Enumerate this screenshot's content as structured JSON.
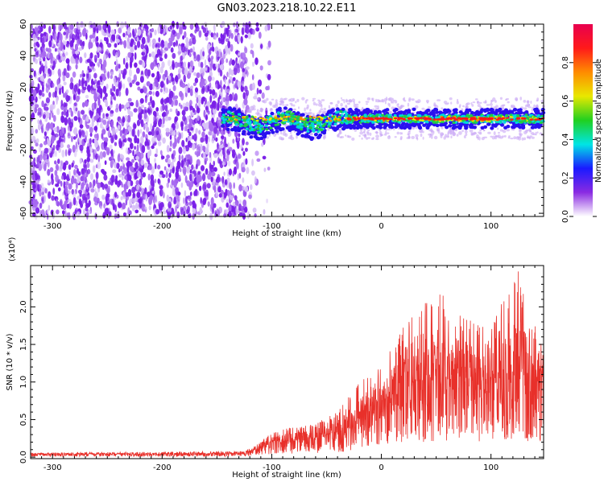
{
  "title": "GN03.2023.218.10.22.E11",
  "colors": {
    "spectrogram_background_points": "#8a3cf0",
    "snr_line": "#e8302a",
    "frame": "#000000"
  },
  "chart_data": [
    {
      "type": "heatmap",
      "name": "spectrogram",
      "xlabel": "Height of straight line (km)",
      "ylabel": "Frequency (Hz)",
      "xlim": [
        -320,
        148
      ],
      "ylim": [
        -62,
        60
      ],
      "xticks": [
        -300,
        -200,
        -100,
        0,
        100
      ],
      "xtick_labels": [
        "-300",
        "-200",
        "-100",
        "0",
        "100"
      ],
      "yticks": [
        -60,
        -40,
        -20,
        0,
        20,
        40,
        60
      ],
      "ytick_labels": [
        "-60",
        "-40",
        "-20",
        "0",
        "20",
        "40",
        "60"
      ],
      "noise_region_x": [
        -320,
        -122
      ],
      "signal_band_hz": [
        -6,
        6
      ],
      "signal_core_x": [
        -30,
        148
      ],
      "scattered_blob_x": [
        -140,
        -30
      ],
      "colorbar": {
        "label": "Normalized spectral amplitude",
        "range": [
          0.0,
          1.0
        ],
        "ticks": [
          0.0,
          0.2,
          0.4,
          0.6,
          0.8
        ],
        "tick_labels": [
          "0.0",
          "0.2",
          "0.4",
          "0.6",
          "0.8"
        ],
        "colormap": [
          "#ffffff",
          "#8a2be2",
          "#1a1aff",
          "#00e5e5",
          "#20d020",
          "#e8e800",
          "#ff8c00",
          "#ff1a1a",
          "#e8004f"
        ]
      }
    },
    {
      "type": "line",
      "name": "snr",
      "xlabel": "Height of straight line (km)",
      "ylabel": "SNR (10 * v/v)",
      "scale_label": "(x10⁴)",
      "xlim": [
        -320,
        148
      ],
      "ylim": [
        -0.02,
        2.55
      ],
      "xticks": [
        -300,
        -200,
        -100,
        0,
        100
      ],
      "xtick_labels": [
        "-300",
        "-200",
        "-100",
        "0",
        "100"
      ],
      "yticks": [
        0.0,
        0.5,
        1.0,
        1.5,
        2.0
      ],
      "ytick_labels": [
        "0.0",
        "0.5",
        "1.0",
        "1.5",
        "2.0"
      ],
      "envelope": {
        "x": [
          -320,
          -200,
          -125,
          -110,
          -100,
          -80,
          -60,
          -40,
          -25,
          -15,
          0,
          15,
          25,
          40,
          55,
          70,
          90,
          110,
          125,
          135,
          148
        ],
        "mean": [
          0.04,
          0.04,
          0.05,
          0.12,
          0.2,
          0.22,
          0.25,
          0.3,
          0.42,
          0.6,
          0.75,
          0.8,
          0.95,
          1.0,
          1.05,
          1.0,
          0.95,
          1.0,
          1.1,
          1.05,
          1.0
        ],
        "peak": [
          0.06,
          0.07,
          0.08,
          0.2,
          0.35,
          0.4,
          0.45,
          0.6,
          0.9,
          1.1,
          1.25,
          1.6,
          2.0,
          2.1,
          2.2,
          2.0,
          1.8,
          2.2,
          2.55,
          1.8,
          1.7
        ]
      }
    }
  ]
}
